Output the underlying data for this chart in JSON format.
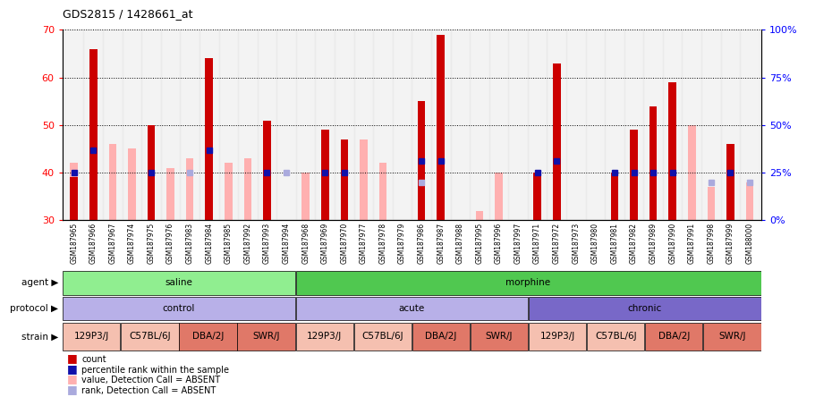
{
  "title": "GDS2815 / 1428661_at",
  "samples": [
    "GSM187965",
    "GSM187966",
    "GSM187967",
    "GSM187974",
    "GSM187975",
    "GSM187976",
    "GSM187983",
    "GSM187984",
    "GSM187985",
    "GSM187992",
    "GSM187993",
    "GSM187994",
    "GSM187968",
    "GSM187969",
    "GSM187970",
    "GSM187977",
    "GSM187978",
    "GSM187979",
    "GSM187986",
    "GSM187987",
    "GSM187988",
    "GSM187995",
    "GSM187996",
    "GSM187997",
    "GSM187971",
    "GSM187972",
    "GSM187973",
    "GSM187980",
    "GSM187981",
    "GSM187982",
    "GSM187989",
    "GSM187990",
    "GSM187991",
    "GSM187998",
    "GSM187999",
    "GSM188000"
  ],
  "red_values": [
    39,
    66,
    null,
    null,
    50,
    null,
    null,
    64,
    null,
    null,
    51,
    null,
    null,
    49,
    47,
    null,
    null,
    null,
    55,
    69,
    null,
    null,
    null,
    null,
    40,
    63,
    null,
    null,
    40,
    49,
    54,
    59,
    null,
    null,
    46,
    null
  ],
  "pink_values": [
    42,
    null,
    46,
    45,
    null,
    41,
    43,
    null,
    42,
    43,
    null,
    null,
    40,
    null,
    null,
    47,
    42,
    null,
    null,
    null,
    null,
    32,
    40,
    null,
    null,
    null,
    null,
    null,
    null,
    null,
    null,
    null,
    50,
    37,
    null,
    38
  ],
  "blue_percentile": [
    25,
    37,
    null,
    null,
    25,
    null,
    null,
    37,
    null,
    null,
    25,
    null,
    null,
    25,
    25,
    null,
    null,
    null,
    31,
    31,
    null,
    null,
    null,
    null,
    25,
    31,
    null,
    null,
    25,
    25,
    25,
    25,
    null,
    null,
    25,
    null
  ],
  "light_blue_percentile": [
    null,
    null,
    null,
    null,
    null,
    null,
    25,
    null,
    null,
    null,
    null,
    25,
    null,
    null,
    null,
    null,
    null,
    null,
    20,
    null,
    null,
    null,
    null,
    null,
    null,
    null,
    null,
    null,
    null,
    null,
    null,
    null,
    null,
    20,
    null,
    20
  ],
  "agent_groups": [
    {
      "label": "saline",
      "start": 0,
      "end": 12,
      "color": "#90ee90"
    },
    {
      "label": "morphine",
      "start": 12,
      "end": 36,
      "color": "#50c850"
    }
  ],
  "protocol_groups": [
    {
      "label": "control",
      "start": 0,
      "end": 12,
      "color": "#b8b0e8"
    },
    {
      "label": "acute",
      "start": 12,
      "end": 24,
      "color": "#b8b0e8"
    },
    {
      "label": "chronic",
      "start": 24,
      "end": 36,
      "color": "#7868c8"
    }
  ],
  "strain_groups": [
    {
      "label": "129P3/J",
      "start": 0,
      "end": 3,
      "color": "#f5c0b0"
    },
    {
      "label": "C57BL/6J",
      "start": 3,
      "end": 6,
      "color": "#f5c0b0"
    },
    {
      "label": "DBA/2J",
      "start": 6,
      "end": 9,
      "color": "#e07868"
    },
    {
      "label": "SWR/J",
      "start": 9,
      "end": 12,
      "color": "#e07868"
    },
    {
      "label": "129P3/J",
      "start": 12,
      "end": 15,
      "color": "#f5c0b0"
    },
    {
      "label": "C57BL/6J",
      "start": 15,
      "end": 18,
      "color": "#f5c0b0"
    },
    {
      "label": "DBA/2J",
      "start": 18,
      "end": 21,
      "color": "#e07868"
    },
    {
      "label": "SWR/J",
      "start": 21,
      "end": 24,
      "color": "#e07868"
    },
    {
      "label": "129P3/J",
      "start": 24,
      "end": 27,
      "color": "#f5c0b0"
    },
    {
      "label": "C57BL/6J",
      "start": 27,
      "end": 30,
      "color": "#f5c0b0"
    },
    {
      "label": "DBA/2J",
      "start": 30,
      "end": 33,
      "color": "#e07868"
    },
    {
      "label": "SWR/J",
      "start": 33,
      "end": 36,
      "color": "#e07868"
    }
  ],
  "ylim": [
    30,
    70
  ],
  "yticks": [
    30,
    40,
    50,
    60,
    70
  ],
  "right_yticks": [
    0,
    25,
    50,
    75,
    100
  ],
  "right_yticklabels": [
    "0%",
    "25%",
    "50%",
    "75%",
    "100%"
  ],
  "red_color": "#cc0000",
  "pink_color": "#ffb0b0",
  "blue_color": "#1010aa",
  "light_blue_color": "#aaaadd",
  "bar_bottom": 30,
  "bar_width": 0.4
}
